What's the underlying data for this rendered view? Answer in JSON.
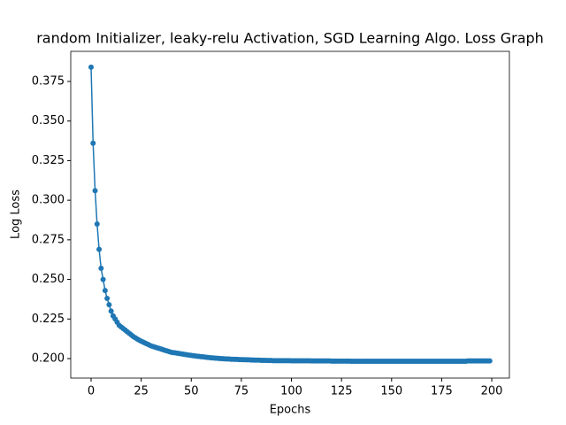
{
  "chart_data": {
    "type": "line",
    "title": "random Initializer, leaky-relu Activation, SGD Learning Algo. Loss Graph",
    "xlabel": "Epochs",
    "ylabel": "Log Loss",
    "x": [
      0,
      1,
      2,
      3,
      4,
      5,
      6,
      7,
      8,
      9,
      10,
      11,
      12,
      13,
      14,
      15,
      16,
      17,
      18,
      19,
      20,
      21,
      22,
      23,
      24,
      25,
      26,
      27,
      28,
      29,
      30,
      31,
      32,
      33,
      34,
      35,
      36,
      37,
      38,
      39,
      40,
      41,
      42,
      43,
      44,
      45,
      46,
      47,
      48,
      49,
      50,
      51,
      52,
      53,
      54,
      55,
      56,
      57,
      58,
      59,
      60,
      61,
      62,
      63,
      64,
      65,
      66,
      67,
      68,
      69,
      70,
      71,
      72,
      73,
      74,
      75,
      76,
      77,
      78,
      79,
      80,
      81,
      82,
      83,
      84,
      85,
      86,
      87,
      88,
      89,
      90,
      91,
      92,
      93,
      94,
      95,
      96,
      97,
      98,
      99,
      100,
      101,
      102,
      103,
      104,
      105,
      106,
      107,
      108,
      109,
      110,
      111,
      112,
      113,
      114,
      115,
      116,
      117,
      118,
      119,
      120,
      121,
      122,
      123,
      124,
      125,
      126,
      127,
      128,
      129,
      130,
      131,
      132,
      133,
      134,
      135,
      136,
      137,
      138,
      139,
      140,
      141,
      142,
      143,
      144,
      145,
      146,
      147,
      148,
      149,
      150,
      151,
      152,
      153,
      154,
      155,
      156,
      157,
      158,
      159,
      160,
      161,
      162,
      163,
      164,
      165,
      166,
      167,
      168,
      169,
      170,
      171,
      172,
      173,
      174,
      175,
      176,
      177,
      178,
      179,
      180,
      181,
      182,
      183,
      184,
      185,
      186,
      187,
      188,
      189,
      190,
      191,
      192,
      193,
      194,
      195,
      196,
      197,
      198,
      199
    ],
    "series": [
      {
        "name": "Log Loss",
        "color": "#1f77b4",
        "values": [
          0.384,
          0.336,
          0.306,
          0.285,
          0.269,
          0.257,
          0.25,
          0.243,
          0.238,
          0.234,
          0.23,
          0.227,
          0.225,
          0.223,
          0.221,
          0.22,
          0.219,
          0.218,
          0.217,
          0.216,
          0.215,
          0.214,
          0.2132,
          0.2124,
          0.2117,
          0.211,
          0.2104,
          0.2098,
          0.2092,
          0.2086,
          0.208,
          0.2076,
          0.2072,
          0.2068,
          0.2064,
          0.206,
          0.2056,
          0.2052,
          0.2048,
          0.2044,
          0.204,
          0.2038,
          0.2036,
          0.2034,
          0.2032,
          0.203,
          0.2028,
          0.2026,
          0.2024,
          0.2022,
          0.202,
          0.2018,
          0.2017,
          0.2015,
          0.2014,
          0.2012,
          0.2011,
          0.2009,
          0.2008,
          0.2006,
          0.2005,
          0.2004,
          0.2003,
          0.2002,
          0.2001,
          0.2,
          0.1999,
          0.1998,
          0.1998,
          0.1997,
          0.1996,
          0.1996,
          0.1995,
          0.1995,
          0.1994,
          0.1994,
          0.1993,
          0.1993,
          0.1992,
          0.1992,
          0.1991,
          0.1991,
          0.199,
          0.199,
          0.199,
          0.1989,
          0.1989,
          0.1989,
          0.1988,
          0.1988,
          0.1988,
          0.1987,
          0.1987,
          0.1987,
          0.1987,
          0.1987,
          0.1987,
          0.1987,
          0.1987,
          0.1987,
          0.1986,
          0.1986,
          0.1986,
          0.1986,
          0.1986,
          0.1986,
          0.1986,
          0.1986,
          0.1986,
          0.1986,
          0.1985,
          0.1985,
          0.1985,
          0.1985,
          0.1985,
          0.1985,
          0.1985,
          0.1985,
          0.1985,
          0.1985,
          0.1984,
          0.1984,
          0.1984,
          0.1984,
          0.1984,
          0.1984,
          0.1984,
          0.1984,
          0.1984,
          0.1984,
          0.1983,
          0.1983,
          0.1983,
          0.1983,
          0.1983,
          0.1983,
          0.1983,
          0.1983,
          0.1983,
          0.1983,
          0.1983,
          0.1983,
          0.1983,
          0.1983,
          0.1983,
          0.1983,
          0.1983,
          0.1983,
          0.1983,
          0.1983,
          0.1983,
          0.1983,
          0.1983,
          0.1983,
          0.1983,
          0.1983,
          0.1983,
          0.1983,
          0.1983,
          0.1983,
          0.1983,
          0.1983,
          0.1983,
          0.1983,
          0.1983,
          0.1983,
          0.1983,
          0.1983,
          0.1983,
          0.1983,
          0.1983,
          0.1983,
          0.1983,
          0.1983,
          0.1983,
          0.1983,
          0.1983,
          0.1983,
          0.1983,
          0.1983,
          0.1983,
          0.1983,
          0.1983,
          0.1983,
          0.1983,
          0.1983,
          0.1983,
          0.1983,
          0.1985,
          0.1985,
          0.1985,
          0.1985,
          0.1985,
          0.1985,
          0.1985,
          0.1985,
          0.1985,
          0.1985,
          0.1985,
          0.1985
        ]
      }
    ],
    "xlim": [
      -10.15,
      208.8
    ],
    "xticks": [
      0,
      25,
      50,
      75,
      100,
      125,
      150,
      175,
      200
    ],
    "ylim": [
      0.1877,
      0.394
    ],
    "yticks": [
      {
        "value": 0.2,
        "label": "0.200"
      },
      {
        "value": 0.225,
        "label": "0.225"
      },
      {
        "value": 0.25,
        "label": "0.250"
      },
      {
        "value": 0.275,
        "label": "0.275"
      },
      {
        "value": 0.3,
        "label": "0.300"
      },
      {
        "value": 0.325,
        "label": "0.325"
      },
      {
        "value": 0.35,
        "label": "0.350"
      },
      {
        "value": 0.375,
        "label": "0.375"
      }
    ],
    "grid": false,
    "markers": true
  }
}
